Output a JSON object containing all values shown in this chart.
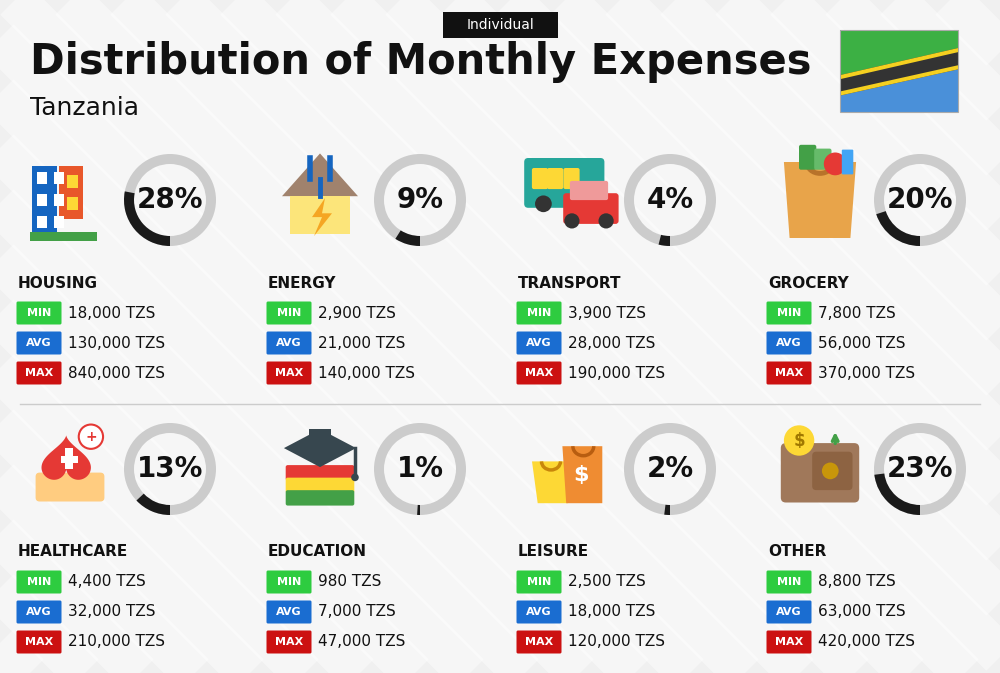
{
  "title": "Distribution of Monthly Expenses",
  "subtitle": "Tanzania",
  "badge": "Individual",
  "bg_color": "#f0f0f0",
  "bg_color2": "#e8e8e8",
  "categories": [
    {
      "name": "HOUSING",
      "percent": 28,
      "min_val": "18,000 TZS",
      "avg_val": "130,000 TZS",
      "max_val": "840,000 TZS",
      "row": 0,
      "col": 0,
      "emoji": "🏙"
    },
    {
      "name": "ENERGY",
      "percent": 9,
      "min_val": "2,900 TZS",
      "avg_val": "21,000 TZS",
      "max_val": "140,000 TZS",
      "row": 0,
      "col": 1,
      "emoji": "⚡"
    },
    {
      "name": "TRANSPORT",
      "percent": 4,
      "min_val": "3,900 TZS",
      "avg_val": "28,000 TZS",
      "max_val": "190,000 TZS",
      "row": 0,
      "col": 2,
      "emoji": "🚌"
    },
    {
      "name": "GROCERY",
      "percent": 20,
      "min_val": "7,800 TZS",
      "avg_val": "56,000 TZS",
      "max_val": "370,000 TZS",
      "row": 0,
      "col": 3,
      "emoji": "🛒"
    },
    {
      "name": "HEALTHCARE",
      "percent": 13,
      "min_val": "4,400 TZS",
      "avg_val": "32,000 TZS",
      "max_val": "210,000 TZS",
      "row": 1,
      "col": 0,
      "emoji": "❤"
    },
    {
      "name": "EDUCATION",
      "percent": 1,
      "min_val": "980 TZS",
      "avg_val": "7,000 TZS",
      "max_val": "47,000 TZS",
      "row": 1,
      "col": 1,
      "emoji": "🎓"
    },
    {
      "name": "LEISURE",
      "percent": 2,
      "min_val": "2,500 TZS",
      "avg_val": "18,000 TZS",
      "max_val": "120,000 TZS",
      "row": 1,
      "col": 2,
      "emoji": "🛍"
    },
    {
      "name": "OTHER",
      "percent": 23,
      "min_val": "8,800 TZS",
      "avg_val": "63,000 TZS",
      "max_val": "420,000 TZS",
      "row": 1,
      "col": 3,
      "emoji": "💰"
    }
  ],
  "min_color": "#2ecc40",
  "avg_color": "#1a6dd1",
  "max_color": "#cc1111",
  "label_text_color": "#ffffff",
  "text_color": "#111111",
  "circle_dark_color": "#1a1a1a",
  "circle_light_color": "#cccccc",
  "title_fontsize": 30,
  "subtitle_fontsize": 18,
  "badge_fontsize": 10,
  "category_fontsize": 11,
  "value_fontsize": 11,
  "percent_fontsize": 20,
  "icon_fontsize": 36
}
